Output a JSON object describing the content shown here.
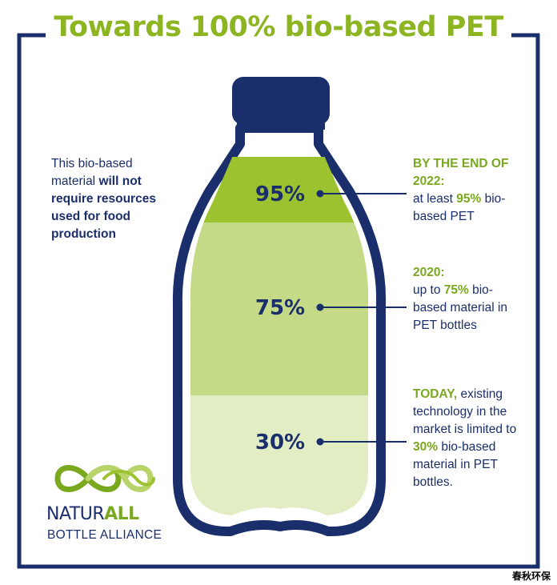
{
  "title": "Towards 100% bio-based PET",
  "colors": {
    "navy": "#1b2e6c",
    "green": "#8cb521",
    "green_dark": "#7aa81f",
    "fill_95": "#9cc22f",
    "fill_75": "#c4da86",
    "fill_30": "#e3edc4"
  },
  "left_note": {
    "part1": "This bio-based material ",
    "bold": "will not require resources used for food production"
  },
  "levels": [
    {
      "percent": "95%",
      "heading": "BY THE END OF 2022:",
      "line_a": "at least ",
      "value": "95%",
      "line_b": " bio-based PET"
    },
    {
      "percent": "75%",
      "heading": "2020:",
      "line_a": "up to ",
      "value": "75%",
      "line_b": " bio-based material in PET bottles"
    },
    {
      "percent": "30%",
      "heading": "TODAY,",
      "line_a": " existing technology in the market is limited to ",
      "value": "30%",
      "line_b": " bio-based material in PET bottles."
    }
  ],
  "logo": {
    "name_a": "NATUR",
    "name_b": "ALL",
    "sub": "BOTTLE ALLIANCE"
  },
  "watermark": "春秋环保"
}
